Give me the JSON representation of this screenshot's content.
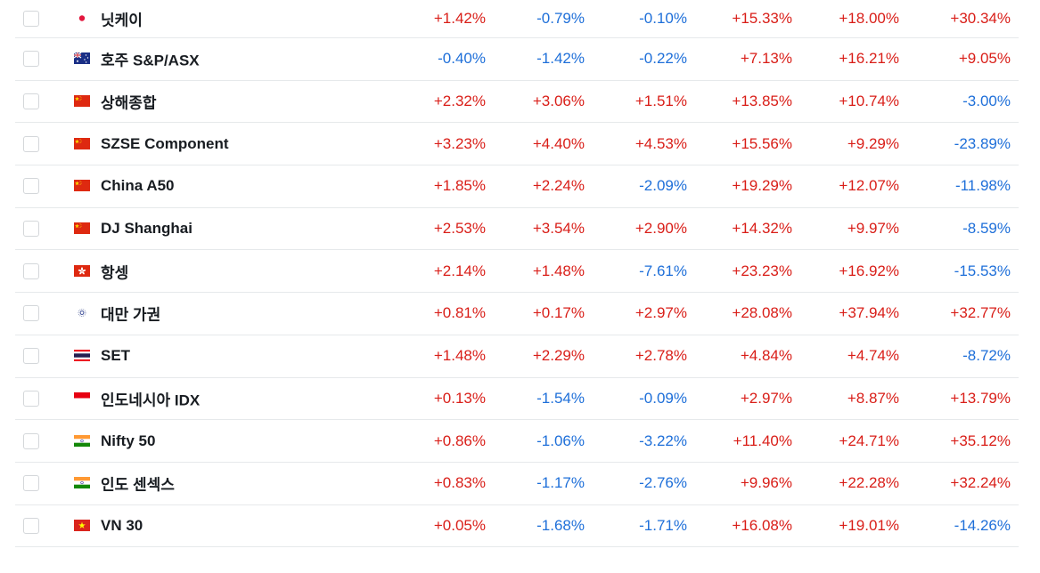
{
  "colors": {
    "up": "#d91e18",
    "down": "#1e6fd9"
  },
  "rows": [
    {
      "name": "닛케이",
      "flag": "japan-flag-icon",
      "v": [
        "+1.42%",
        "-0.79%",
        "-0.10%",
        "+15.33%",
        "+18.00%",
        "+30.34%"
      ]
    },
    {
      "name": "호주 S&P/ASX",
      "flag": "australia-flag-icon",
      "v": [
        "-0.40%",
        "-1.42%",
        "-0.22%",
        "+7.13%",
        "+16.21%",
        "+9.05%"
      ]
    },
    {
      "name": "상해종합",
      "flag": "china-flag-icon",
      "v": [
        "+2.32%",
        "+3.06%",
        "+1.51%",
        "+13.85%",
        "+10.74%",
        "-3.00%"
      ]
    },
    {
      "name": "SZSE Component",
      "flag": "china-flag-icon",
      "v": [
        "+3.23%",
        "+4.40%",
        "+4.53%",
        "+15.56%",
        "+9.29%",
        "-23.89%"
      ]
    },
    {
      "name": "China A50",
      "flag": "china-flag-icon",
      "v": [
        "+1.85%",
        "+2.24%",
        "-2.09%",
        "+19.29%",
        "+12.07%",
        "-11.98%"
      ]
    },
    {
      "name": "DJ Shanghai",
      "flag": "china-flag-icon",
      "v": [
        "+2.53%",
        "+3.54%",
        "+2.90%",
        "+14.32%",
        "+9.97%",
        "-8.59%"
      ]
    },
    {
      "name": "항셍",
      "flag": "hong-kong-flag-icon",
      "v": [
        "+2.14%",
        "+1.48%",
        "-7.61%",
        "+23.23%",
        "+16.92%",
        "-15.53%"
      ]
    },
    {
      "name": "대만 가권",
      "flag": "taiwan-flag-icon",
      "v": [
        "+0.81%",
        "+0.17%",
        "+2.97%",
        "+28.08%",
        "+37.94%",
        "+32.77%"
      ]
    },
    {
      "name": "SET",
      "flag": "thailand-flag-icon",
      "v": [
        "+1.48%",
        "+2.29%",
        "+2.78%",
        "+4.84%",
        "+4.74%",
        "-8.72%"
      ]
    },
    {
      "name": "인도네시아 IDX",
      "flag": "indonesia-flag-icon",
      "v": [
        "+0.13%",
        "-1.54%",
        "-0.09%",
        "+2.97%",
        "+8.87%",
        "+13.79%"
      ]
    },
    {
      "name": "Nifty 50",
      "flag": "india-flag-icon",
      "v": [
        "+0.86%",
        "-1.06%",
        "-3.22%",
        "+11.40%",
        "+24.71%",
        "+35.12%"
      ]
    },
    {
      "name": "인도 센섹스",
      "flag": "india-flag-icon",
      "v": [
        "+0.83%",
        "-1.17%",
        "-2.76%",
        "+9.96%",
        "+22.28%",
        "+32.24%"
      ]
    },
    {
      "name": "VN 30",
      "flag": "vietnam-flag-icon",
      "v": [
        "+0.05%",
        "-1.68%",
        "-1.71%",
        "+16.08%",
        "+19.01%",
        "-14.26%"
      ]
    }
  ]
}
